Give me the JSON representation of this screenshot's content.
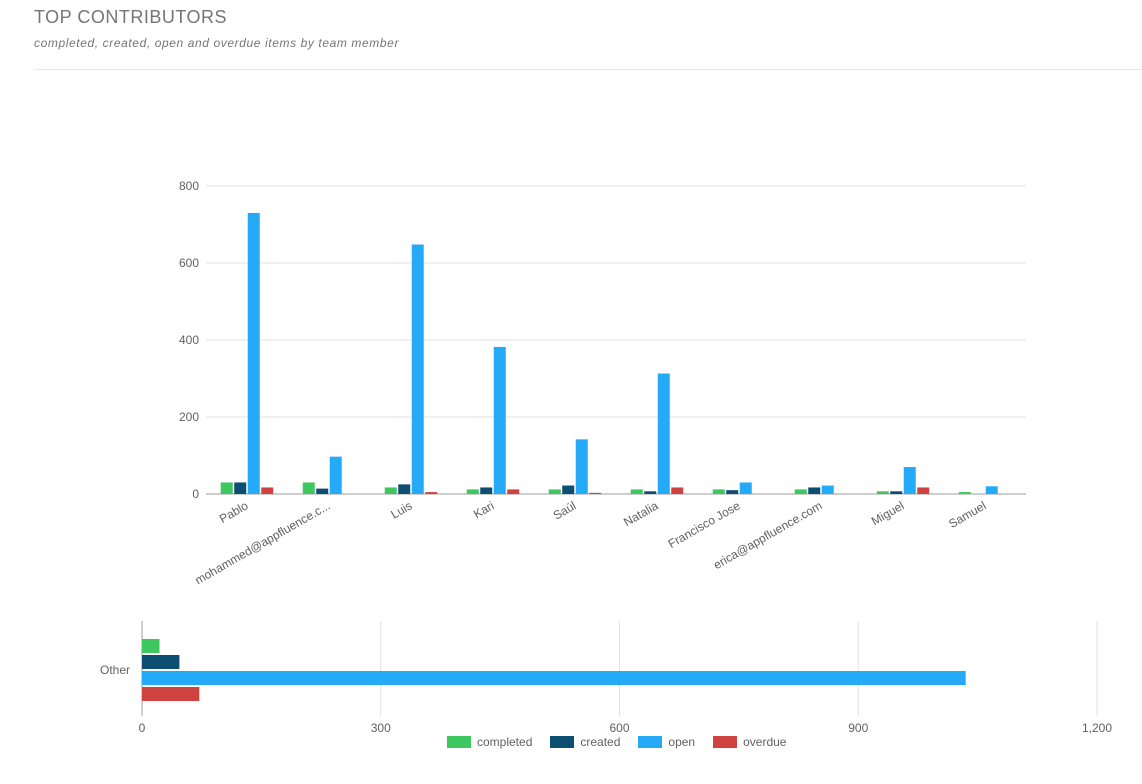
{
  "header": {
    "title": "TOP CONTRIBUTORS",
    "subtitle": "completed, created, open and overdue items by team member"
  },
  "colors": {
    "completed": "#3ec65f",
    "created": "#0d4f72",
    "open": "#25aaf8",
    "overdue": "#cf4240",
    "grid": "#e0e0e0",
    "axis": "#9e9e9e"
  },
  "legend": [
    {
      "name": "completed",
      "color": "#3ec65f"
    },
    {
      "name": "created",
      "color": "#0d4f72"
    },
    {
      "name": "open",
      "color": "#25aaf8"
    },
    {
      "name": "overdue",
      "color": "#cf4240"
    }
  ],
  "chart_data": [
    {
      "type": "bar",
      "orientation": "vertical",
      "categories": [
        "Pablo",
        "mohammed@appfluence.c...",
        "Luis",
        "Kari",
        "Saúl",
        "Natalia",
        "Francisco Jose",
        "erica@appfluence.com",
        "Miguel",
        "Samuel"
      ],
      "series": [
        {
          "name": "completed",
          "values": [
            30,
            30,
            17,
            12,
            12,
            12,
            12,
            12,
            7,
            5
          ]
        },
        {
          "name": "created",
          "values": [
            30,
            14,
            25,
            17,
            22,
            7,
            10,
            17,
            7,
            0
          ]
        },
        {
          "name": "open",
          "values": [
            730,
            97,
            648,
            382,
            142,
            313,
            30,
            22,
            70,
            20
          ]
        },
        {
          "name": "overdue",
          "values": [
            17,
            0,
            5,
            12,
            3,
            17,
            0,
            0,
            17,
            0
          ]
        }
      ],
      "yticks": [
        "0",
        "200",
        "400",
        "600",
        "800"
      ],
      "ylim": [
        0,
        800
      ],
      "grid": true
    },
    {
      "type": "bar",
      "orientation": "horizontal",
      "categories": [
        "Other"
      ],
      "series": [
        {
          "name": "completed",
          "values": [
            22
          ]
        },
        {
          "name": "created",
          "values": [
            47
          ]
        },
        {
          "name": "open",
          "values": [
            1035
          ]
        },
        {
          "name": "overdue",
          "values": [
            72
          ]
        }
      ],
      "xticks": [
        "0",
        "300",
        "600",
        "900",
        "1,200"
      ],
      "xlim": [
        0,
        1200
      ],
      "grid": true,
      "legend_position": "bottom"
    }
  ]
}
